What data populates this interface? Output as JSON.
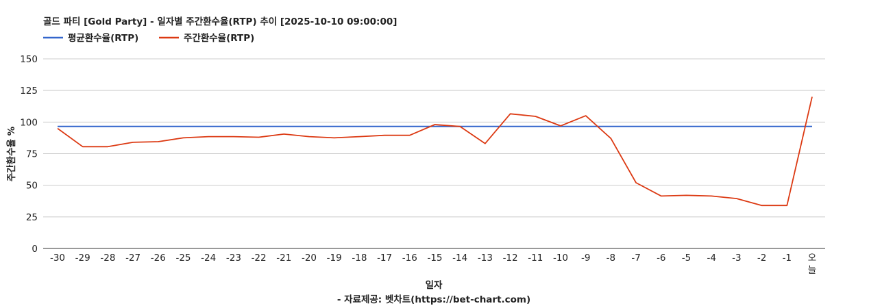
{
  "chart_data": {
    "type": "line",
    "title": "골드 파티 [Gold Party] - 일자별 주간환수율(RTP) 추이 [2025-10-10 09:00:00]",
    "xlabel": "일자",
    "ylabel": "주간환수율 %",
    "footer": "- 자료제공: 벳차트(https://bet-chart.com)",
    "ylim": [
      0,
      150
    ],
    "yticks": [
      "0",
      "25",
      "50",
      "75",
      "100",
      "125",
      "150"
    ],
    "grid": true,
    "legend_position": "top-left",
    "categories": [
      "-30",
      "-29",
      "-28",
      "-27",
      "-26",
      "-25",
      "-24",
      "-23",
      "-22",
      "-21",
      "-20",
      "-19",
      "-18",
      "-17",
      "-16",
      "-15",
      "-14",
      "-13",
      "-12",
      "-11",
      "-10",
      "-9",
      "-8",
      "-7",
      "-6",
      "-5",
      "-4",
      "-3",
      "-2",
      "-1",
      "오늘"
    ],
    "series": [
      {
        "name": "평균환수율(RTP)",
        "color": "#3366cc",
        "values": [
          96.5,
          96.5,
          96.5,
          96.5,
          96.5,
          96.5,
          96.5,
          96.5,
          96.5,
          96.5,
          96.5,
          96.5,
          96.5,
          96.5,
          96.5,
          96.5,
          96.5,
          96.5,
          96.5,
          96.5,
          96.5,
          96.5,
          96.5,
          96.5,
          96.5,
          96.5,
          96.5,
          96.5,
          96.5,
          96.5,
          96.5
        ]
      },
      {
        "name": "주간환수율(RTP)",
        "color": "#dc3912",
        "values": [
          95,
          80.5,
          80.5,
          84,
          84.5,
          87.5,
          88.5,
          88.5,
          88,
          90.5,
          88.5,
          87.5,
          88.5,
          89.5,
          89.5,
          98,
          96.5,
          83,
          106.5,
          104.5,
          97,
          105,
          87,
          52,
          41.5,
          42,
          41.5,
          39.5,
          34,
          34,
          120
        ]
      }
    ]
  }
}
